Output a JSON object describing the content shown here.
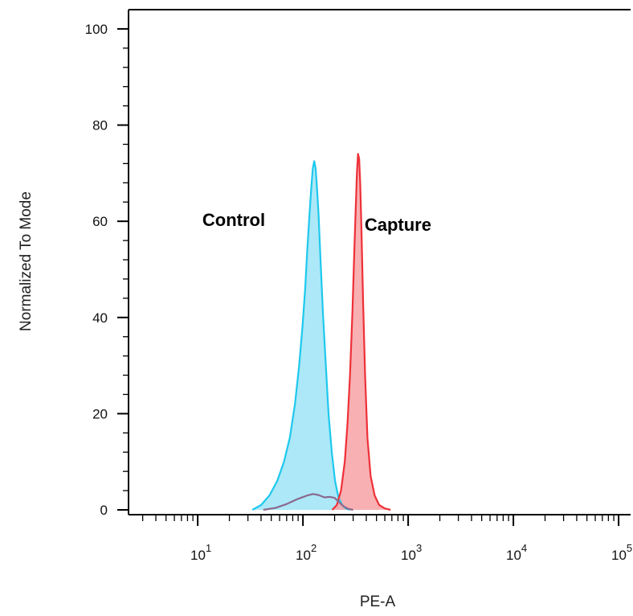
{
  "chart_data": {
    "type": "area",
    "xlabel": "PE-A",
    "ylabel": "Normalized To Mode",
    "xscale": "log",
    "xlim": [
      2.2,
      130000
    ],
    "ylim": [
      -1,
      104
    ],
    "grid": false,
    "legend": "none",
    "yticks": [
      {
        "value": 0,
        "label": "0"
      },
      {
        "value": 20,
        "label": "20"
      },
      {
        "value": 40,
        "label": "40"
      },
      {
        "value": 60,
        "label": "60"
      },
      {
        "value": 80,
        "label": "80"
      },
      {
        "value": 100,
        "label": "100"
      }
    ],
    "xticks": [
      {
        "value": 10,
        "base": "10",
        "exp": "1"
      },
      {
        "value": 100,
        "base": "10",
        "exp": "2"
      },
      {
        "value": 1000,
        "base": "10",
        "exp": "3"
      },
      {
        "value": 10000,
        "base": "10",
        "exp": "4"
      },
      {
        "value": 100000,
        "base": "10",
        "exp": "5"
      }
    ],
    "annotations": [
      {
        "text": "Control",
        "x": 22,
        "y": 59
      },
      {
        "text": "Capture",
        "x": 800,
        "y": 58
      }
    ],
    "series": [
      {
        "color": "#1ec8ee",
        "fill": "#9ee4f6",
        "x": [
          33,
          40,
          48,
          57,
          66,
          75,
          84,
          92,
          99,
          105,
          110,
          115,
          120,
          124,
          128,
          132,
          136,
          141,
          147,
          155,
          164,
          175,
          188,
          202,
          218,
          236,
          255,
          278
        ],
        "y": [
          0,
          1,
          3,
          6,
          10,
          15,
          22,
          30,
          38,
          46,
          54,
          61,
          67,
          71,
          72.5,
          71,
          67,
          61,
          52,
          41,
          31,
          20,
          12,
          6,
          2.5,
          1,
          0.3,
          0
        ]
      },
      {
        "color": "#ee3038",
        "fill": "#f7a2a4",
        "x": [
          190,
          210,
          230,
          250,
          265,
          280,
          295,
          308,
          318,
          326,
          334,
          342,
          350,
          360,
          372,
          390,
          410,
          440,
          480,
          530,
          600,
          680
        ],
        "y": [
          0,
          1,
          4,
          10,
          18,
          28,
          41,
          54,
          63,
          70,
          74,
          73,
          68,
          58,
          44,
          28,
          15,
          7,
          3,
          1,
          0.3,
          0
        ]
      },
      {
        "color": "#8a6a8e",
        "fill": "none",
        "x": [
          42,
          55,
          70,
          90,
          110,
          125,
          140,
          160,
          180,
          200,
          220,
          245,
          270,
          300
        ],
        "y": [
          0,
          0.4,
          1.2,
          2.3,
          3,
          3.3,
          3.1,
          2.6,
          2.7,
          2.5,
          1.6,
          0.7,
          0.2,
          0
        ]
      }
    ]
  }
}
